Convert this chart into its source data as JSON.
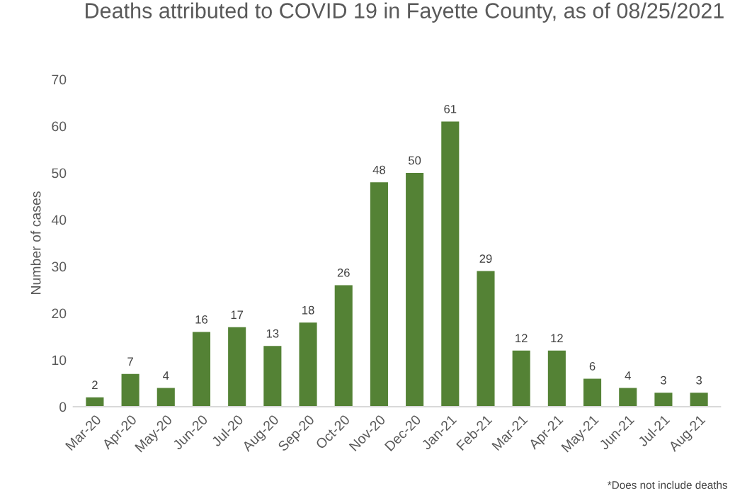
{
  "chart_data": {
    "type": "bar",
    "title": "Deaths attributed to COVID 19 in Fayette County, as of 08/25/2021",
    "ylabel": "Number of cases",
    "categories": [
      "Mar-20",
      "Apr-20",
      "May-20",
      "Jun-20",
      "Jul-20",
      "Aug-20",
      "Sep-20",
      "Oct-20",
      "Nov-20",
      "Dec-20",
      "Jan-21",
      "Feb-21",
      "Mar-21",
      "Apr-21",
      "May-21",
      "Jun-21",
      "Jul-21",
      "Aug-21"
    ],
    "values": [
      2,
      7,
      4,
      16,
      17,
      13,
      18,
      26,
      48,
      50,
      61,
      29,
      12,
      12,
      6,
      4,
      3,
      3
    ],
    "color": "#548235",
    "ylim": [
      0,
      70
    ],
    "yticks": [
      0,
      10,
      20,
      30,
      40,
      50,
      60,
      70
    ],
    "data_labels": true,
    "grid": false,
    "annotations": [
      "*Does not include deaths"
    ]
  }
}
